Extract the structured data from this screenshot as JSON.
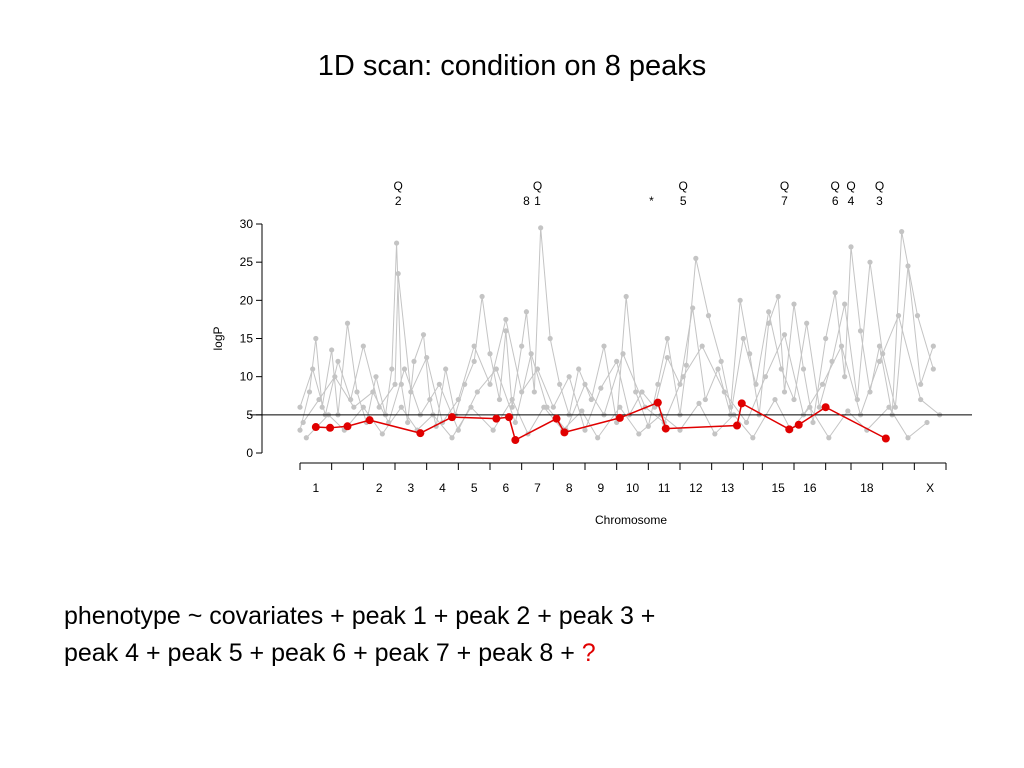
{
  "slide": {
    "title": "1D scan: condition on 8 peaks",
    "formula_line1": "phenotype ~ covariates + peak 1 + peak 2 + peak 3 +",
    "formula_line2": "peak 4 + peak 5 + peak 6 + peak 7 + peak 8 + ",
    "formula_question": "?"
  },
  "chart_data": {
    "type": "line",
    "xlabel": "Chromosome",
    "ylabel": "logP",
    "ylim": [
      0,
      30
    ],
    "yticks": [
      0,
      5,
      10,
      15,
      20,
      25,
      30
    ],
    "chromosomes": [
      {
        "label": "1",
        "start": 0,
        "end": 1
      },
      {
        "label": "",
        "start": 1,
        "end": 2
      },
      {
        "label": "2",
        "start": 2,
        "end": 3
      },
      {
        "label": "3",
        "start": 3,
        "end": 4
      },
      {
        "label": "4",
        "start": 4,
        "end": 5
      },
      {
        "label": "5",
        "start": 5,
        "end": 6
      },
      {
        "label": "6",
        "start": 6,
        "end": 7
      },
      {
        "label": "7",
        "start": 7,
        "end": 8
      },
      {
        "label": "8",
        "start": 8,
        "end": 9
      },
      {
        "label": "9",
        "start": 9,
        "end": 10
      },
      {
        "label": "10",
        "start": 10,
        "end": 11
      },
      {
        "label": "11",
        "start": 11,
        "end": 12
      },
      {
        "label": "12",
        "start": 12,
        "end": 13
      },
      {
        "label": "13",
        "start": 13,
        "end": 14
      },
      {
        "label": "",
        "start": 14,
        "end": 14.6
      },
      {
        "label": "15",
        "start": 14.6,
        "end": 15.6
      },
      {
        "label": "16",
        "start": 15.6,
        "end": 16.6
      },
      {
        "label": "",
        "start": 16.6,
        "end": 17.4
      },
      {
        "label": "18",
        "start": 17.4,
        "end": 18.4
      },
      {
        "label": "",
        "start": 18.4,
        "end": 19.4
      },
      {
        "label": "X",
        "start": 19.4,
        "end": 20.4
      }
    ],
    "threshold": 5,
    "colors": {
      "conditional": "#e00000",
      "background": "#c4c4c4",
      "threshold": "#000000"
    },
    "annotations": [
      {
        "x": 3.1,
        "line1": "Q",
        "line2": "2"
      },
      {
        "x": 7.15,
        "line1": "",
        "line2": "8"
      },
      {
        "x": 7.5,
        "line1": "Q",
        "line2": "1"
      },
      {
        "x": 11.1,
        "line1": "",
        "line2": "*"
      },
      {
        "x": 12.1,
        "line1": "Q",
        "line2": "5"
      },
      {
        "x": 15.3,
        "line1": "Q",
        "line2": "7"
      },
      {
        "x": 16.9,
        "line1": "Q",
        "line2": "6"
      },
      {
        "x": 17.4,
        "line1": "Q",
        "line2": "4"
      },
      {
        "x": 18.3,
        "line1": "Q",
        "line2": "3"
      }
    ],
    "series": [
      {
        "style": "conditional",
        "x": [
          0.5,
          0.95,
          1.5,
          2.2,
          3.8,
          4.8,
          6.2,
          6.6,
          6.8,
          8.1,
          8.35,
          10.1,
          11.3,
          11.55,
          13.8,
          13.95,
          15.45,
          15.75,
          16.6,
          18.5
        ],
        "y": [
          3.4,
          3.3,
          3.5,
          4.3,
          2.6,
          4.7,
          4.5,
          4.7,
          1.7,
          4.5,
          2.7,
          4.6,
          6.6,
          3.2,
          3.6,
          6.5,
          3.1,
          3.7,
          6.0,
          1.9
        ]
      },
      {
        "style": "background",
        "x": [
          0,
          0.3,
          0.5,
          0.7,
          1.0,
          1.2,
          1.5,
          1.8,
          2.1,
          2.4,
          2.7,
          2.9,
          3.05,
          3.2,
          3.4,
          3.6,
          3.9,
          4.1,
          4.3,
          4.6,
          4.9,
          5.2,
          5.5,
          5.75,
          6.0,
          6.3,
          6.5,
          6.7,
          7.0,
          7.15,
          7.4,
          7.6,
          7.9,
          8.2,
          8.5,
          8.8,
          9.2,
          9.6,
          10.0,
          10.3,
          10.6,
          11.0,
          11.3,
          11.6,
          12.0,
          12.2,
          12.5,
          12.9,
          13.3,
          13.6,
          13.9,
          14.2,
          14.5,
          14.8,
          15.1,
          15.3,
          15.6,
          15.9,
          16.2,
          16.6,
          16.9,
          17.2,
          17.4,
          17.7,
          18.0,
          18.3,
          18.7,
          19.0,
          19.5,
          20.0
        ],
        "y": [
          3.0,
          8.0,
          15.0,
          6.0,
          13.5,
          5.0,
          17.0,
          8.0,
          4.0,
          10.0,
          5.0,
          11.0,
          27.5,
          9.0,
          4.0,
          12.0,
          15.5,
          7.0,
          3.5,
          11.0,
          5.0,
          9.0,
          12.0,
          20.5,
          13.0,
          7.0,
          16.0,
          6.0,
          14.0,
          18.5,
          8.0,
          29.5,
          15.0,
          9.0,
          5.0,
          11.0,
          7.0,
          14.0,
          4.0,
          20.5,
          8.0,
          3.5,
          9.0,
          15.0,
          5.0,
          11.5,
          25.5,
          18.0,
          12.0,
          6.0,
          20.0,
          13.0,
          5.0,
          17.0,
          20.5,
          8.0,
          19.5,
          11.0,
          4.0,
          15.0,
          21.0,
          10.0,
          27.0,
          16.0,
          8.0,
          14.0,
          5.0,
          29.0,
          18.0,
          11.0
        ]
      },
      {
        "style": "background",
        "x": [
          0,
          0.4,
          0.8,
          1.2,
          1.6,
          2.0,
          2.5,
          3.0,
          3.1,
          3.5,
          4.0,
          4.5,
          5.0,
          5.5,
          6.0,
          6.5,
          7.0,
          7.5,
          8.0,
          8.5,
          9.0,
          9.5,
          10.0,
          10.4,
          10.8,
          11.2,
          11.6,
          12.0,
          12.4,
          12.8,
          13.2,
          13.6,
          14.0,
          14.4,
          14.8,
          15.2,
          15.6,
          16.0,
          16.4,
          16.8,
          17.2,
          17.6,
          18.0,
          18.4,
          18.8,
          19.2,
          19.6,
          20.0
        ],
        "y": [
          6.0,
          11.0,
          5.0,
          12.0,
          7.0,
          14.0,
          6.0,
          9.0,
          23.5,
          8.0,
          12.5,
          4.0,
          7.0,
          14.0,
          9.0,
          17.5,
          8.0,
          11.0,
          6.0,
          10.0,
          3.0,
          8.5,
          12.0,
          5.0,
          8.0,
          6.0,
          12.5,
          9.0,
          19.0,
          7.0,
          11.0,
          5.0,
          15.0,
          9.0,
          18.5,
          11.0,
          7.0,
          17.0,
          6.0,
          12.0,
          19.5,
          7.0,
          25.0,
          13.0,
          6.0,
          24.5,
          9.0,
          14.0
        ]
      },
      {
        "style": "background",
        "x": [
          0.1,
          0.6,
          1.1,
          1.7,
          2.3,
          2.8,
          3.3,
          3.8,
          4.4,
          5.0,
          5.6,
          6.2,
          6.8,
          7.3,
          7.8,
          8.4,
          9.0,
          9.6,
          10.2,
          10.9,
          11.5,
          12.1,
          12.7,
          13.4,
          14.1,
          14.7,
          15.3,
          15.9,
          16.5,
          17.1,
          17.7,
          18.3,
          18.9,
          19.6,
          20.2
        ],
        "y": [
          4.0,
          7.0,
          10.0,
          6.0,
          8.0,
          4.0,
          11.0,
          5.0,
          9.0,
          3.0,
          8.0,
          11.0,
          4.0,
          13.0,
          6.0,
          3.0,
          9.0,
          5.0,
          13.0,
          6.0,
          4.0,
          10.0,
          14.0,
          8.0,
          4.0,
          10.0,
          15.5,
          5.0,
          9.0,
          14.0,
          5.0,
          12.0,
          18.0,
          7.0,
          5.0
        ]
      },
      {
        "style": "background",
        "x": [
          0.2,
          0.9,
          1.4,
          2.0,
          2.6,
          3.2,
          3.7,
          4.2,
          4.8,
          5.4,
          6.1,
          6.7,
          7.2,
          7.7,
          8.3,
          8.9,
          9.4,
          10.1,
          10.7,
          11.4,
          12.0,
          12.6,
          13.1,
          13.7,
          14.3,
          15.0,
          15.5,
          16.1,
          16.7,
          17.3,
          17.9,
          18.6,
          19.2,
          19.8
        ],
        "y": [
          2.0,
          5.0,
          3.0,
          6.0,
          2.5,
          6.0,
          3.0,
          5.0,
          2.0,
          6.0,
          3.0,
          7.0,
          2.5,
          6.0,
          3.0,
          5.5,
          2.0,
          6.0,
          2.5,
          5.0,
          3.0,
          6.5,
          2.5,
          5.0,
          2.0,
          7.0,
          3.0,
          6.0,
          2.0,
          5.5,
          3.0,
          6.0,
          2.0,
          4.0
        ]
      }
    ]
  }
}
